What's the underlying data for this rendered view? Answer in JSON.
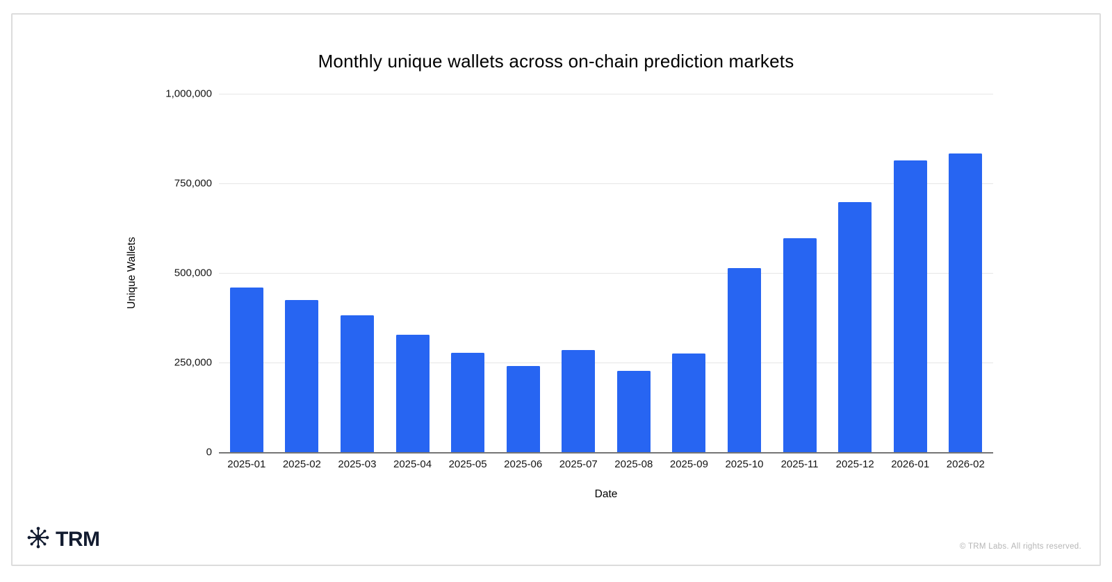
{
  "card": {
    "background": "#ffffff",
    "border_color": "#dcdcdc"
  },
  "chart_data": {
    "type": "bar",
    "title": "Monthly unique wallets across on-chain prediction markets",
    "xlabel": "Date",
    "ylabel": "Unique Wallets",
    "categories": [
      "2025-01",
      "2025-02",
      "2025-03",
      "2025-04",
      "2025-05",
      "2025-06",
      "2025-07",
      "2025-08",
      "2025-09",
      "2025-10",
      "2025-11",
      "2025-12",
      "2026-01",
      "2026-02"
    ],
    "values": [
      460000,
      424000,
      381000,
      328000,
      278000,
      240000,
      285000,
      227000,
      275000,
      514000,
      596000,
      698000,
      814000,
      834000
    ],
    "ylim": [
      0,
      1000000
    ],
    "yticks": [
      {
        "value": 0,
        "label": "0"
      },
      {
        "value": 250000,
        "label": "250,000"
      },
      {
        "value": 500000,
        "label": "500,000"
      },
      {
        "value": 750000,
        "label": "750,000"
      },
      {
        "value": 1000000,
        "label": "1,000,000"
      }
    ],
    "grid": true,
    "legend": "none",
    "bar_color": "#2765f2",
    "gridline_color": "#e6e6e6",
    "axis_line_color": "#757575"
  },
  "footer": {
    "logo_text": "TRM",
    "logo_color": "#131c30",
    "copyright": "© TRM Labs. All rights reserved.",
    "copyright_color": "#b5b5b5"
  }
}
